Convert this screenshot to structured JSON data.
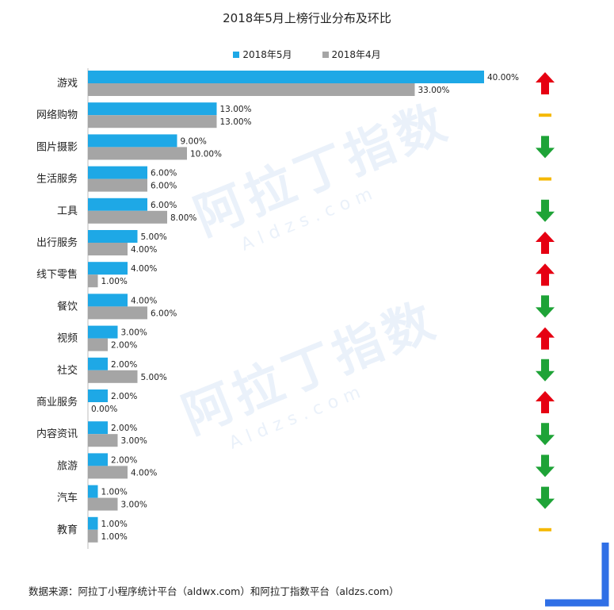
{
  "colors": {
    "may": "#1ea8e6",
    "april": "#a5a5a5",
    "up": "#e60012",
    "down": "#1ea337",
    "flat": "#f5b800",
    "bracket": "#2f6fe6"
  },
  "watermark": {
    "brand": "阿拉丁指数",
    "domain": "Aldzs.com"
  },
  "source": "数据来源：阿拉丁小程序统计平台（aldwx.com）和阿拉丁指数平台（aldzs.com）",
  "chart_data": {
    "type": "bar",
    "orientation": "horizontal",
    "title": "2018年5月上榜行业分布及环比",
    "legend_position": "top",
    "grid": false,
    "xlim": [
      0,
      40
    ],
    "categories": [
      "游戏",
      "网络购物",
      "图片摄影",
      "生活服务",
      "工具",
      "出行服务",
      "线下零售",
      "餐饮",
      "视频",
      "社交",
      "商业服务",
      "内容资讯",
      "旅游",
      "汽车",
      "教育"
    ],
    "series": [
      {
        "name": "2018年5月",
        "values": [
          40,
          13,
          9,
          6,
          6,
          5,
          4,
          4,
          3,
          2,
          2,
          2,
          2,
          1,
          1
        ],
        "labels": [
          "40.00%",
          "13.00%",
          "9.00%",
          "6.00%",
          "6.00%",
          "5.00%",
          "4.00%",
          "4.00%",
          "3.00%",
          "2.00%",
          "2.00%",
          "2.00%",
          "2.00%",
          "1.00%",
          "1.00%"
        ]
      },
      {
        "name": "2018年4月",
        "values": [
          33,
          13,
          10,
          6,
          8,
          4,
          1,
          6,
          2,
          5,
          0,
          3,
          4,
          3,
          1
        ],
        "labels": [
          "33.00%",
          "13.00%",
          "10.00%",
          "6.00%",
          "8.00%",
          "4.00%",
          "1.00%",
          "6.00%",
          "2.00%",
          "5.00%",
          "0.00%",
          "3.00%",
          "4.00%",
          "3.00%",
          "1.00%"
        ]
      }
    ],
    "trend": [
      "up",
      "flat",
      "down",
      "flat",
      "down",
      "up",
      "up",
      "down",
      "up",
      "down",
      "up",
      "down",
      "down",
      "down",
      "flat"
    ]
  }
}
